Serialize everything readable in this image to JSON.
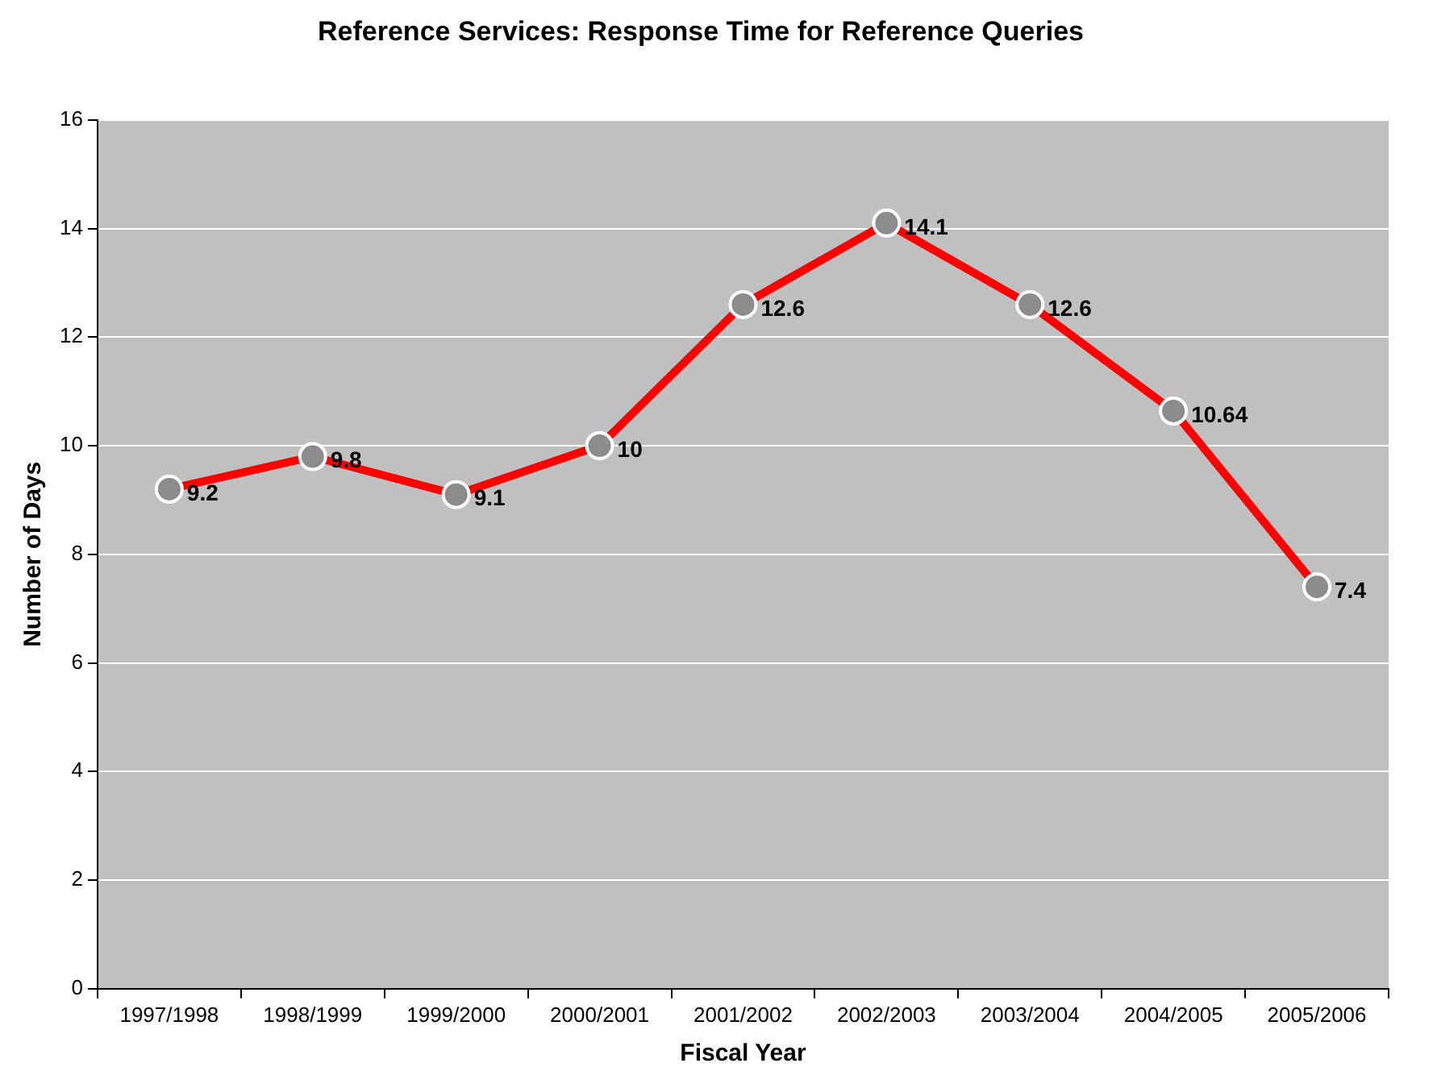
{
  "chart_data": {
    "type": "line",
    "title": "Reference Services: Response Time for Reference Queries",
    "xlabel": "Fiscal Year",
    "ylabel": "Number of Days",
    "categories": [
      "1997/1998",
      "1998/1999",
      "1999/2000",
      "2000/2001",
      "2001/2002",
      "2002/2003",
      "2003/2004",
      "2004/2005",
      "2005/2006"
    ],
    "series": [
      {
        "color": "#ff0000",
        "values": [
          9.2,
          9.8,
          9.1,
          10,
          12.6,
          14.1,
          12.6,
          10.64,
          7.4
        ]
      }
    ],
    "ylim": [
      0,
      16
    ],
    "yticks": [
      0,
      2,
      4,
      6,
      8,
      10,
      12,
      14,
      16
    ],
    "grid": "y",
    "legend": false,
    "marker": "circle",
    "line_style": "solid",
    "data_labels": true
  }
}
